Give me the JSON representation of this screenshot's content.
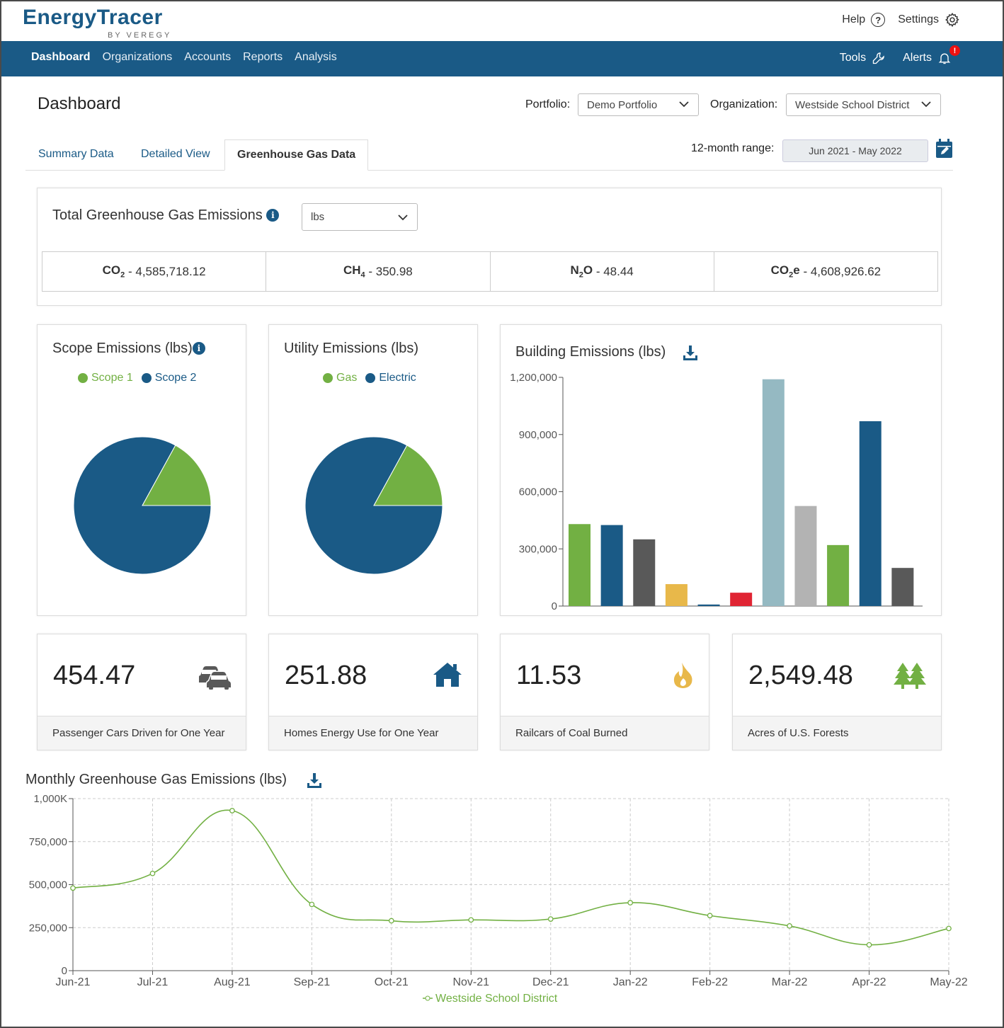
{
  "brand": {
    "name": "EnergyTracer",
    "sub": "BY VEREGY"
  },
  "header": {
    "help_label": "Help",
    "settings_label": "Settings"
  },
  "nav": {
    "items": [
      "Dashboard",
      "Organizations",
      "Accounts",
      "Reports",
      "Analysis"
    ],
    "tools_label": "Tools",
    "alerts_label": "Alerts",
    "alerts_badge": "!"
  },
  "page": {
    "title": "Dashboard",
    "portfolio_label": "Portfolio:",
    "portfolio_value": "Demo Portfolio",
    "organization_label": "Organization:",
    "organization_value": "Westside School District",
    "range_label": "12-month range:",
    "range_value": "Jun 2021 - May 2022"
  },
  "tabs": [
    "Summary Data",
    "Detailed View",
    "Greenhouse Gas Data"
  ],
  "totals": {
    "title": "Total Greenhouse Gas Emissions",
    "unit": "lbs",
    "co2": "4,585,718.12",
    "ch4": "350.98",
    "n2o": "48.44",
    "co2e": "4,608,926.62"
  },
  "scope_chart": {
    "title": "Scope Emissions (lbs)",
    "legend": [
      "Scope 1",
      "Scope 2"
    ],
    "values": [
      17,
      83
    ]
  },
  "utility_chart": {
    "title": "Utility Emissions (lbs)",
    "legend": [
      "Gas",
      "Electric"
    ],
    "values": [
      17,
      83
    ]
  },
  "building_title": "Building Emissions (lbs)",
  "stats": [
    {
      "value": "454.47",
      "label": "Passenger Cars Driven for One Year"
    },
    {
      "value": "251.88",
      "label": "Homes Energy Use for One Year"
    },
    {
      "value": "11.53",
      "label": "Railcars of Coal Burned"
    },
    {
      "value": "2,549.48",
      "label": "Acres of U.S. Forests"
    }
  ],
  "monthly_title": "Monthly Greenhouse Gas Emissions (lbs)",
  "colors": {
    "green": "#72b043",
    "blue": "#1a5a86",
    "dark_gray": "#595959",
    "yellow": "#e8b84a",
    "red": "#e02433",
    "light_teal": "#95b9c2",
    "light_gray": "#b3b3b3"
  },
  "chart_data": [
    {
      "type": "pie",
      "title": "Scope Emissions (lbs)",
      "categories": [
        "Scope 1",
        "Scope 2"
      ],
      "values": [
        17,
        83
      ]
    },
    {
      "type": "pie",
      "title": "Utility Emissions (lbs)",
      "categories": [
        "Gas",
        "Electric"
      ],
      "values": [
        17,
        83
      ]
    },
    {
      "type": "bar",
      "title": "Building Emissions (lbs)",
      "values": [
        430000,
        425000,
        350000,
        115000,
        8000,
        70000,
        1190000,
        525000,
        320000,
        970000,
        200000
      ],
      "bar_colors": [
        "#72b043",
        "#1a5a86",
        "#595959",
        "#e8b84a",
        "#1a5a86",
        "#e02433",
        "#95b9c2",
        "#b3b3b3",
        "#72b043",
        "#1a5a86",
        "#595959"
      ],
      "yticks": [
        0,
        300000,
        600000,
        900000,
        1200000
      ],
      "ytick_labels": [
        "0",
        "300,000",
        "600,000",
        "900,000",
        "1,200,000"
      ],
      "ylim": [
        0,
        1200000
      ]
    },
    {
      "type": "line",
      "title": "Monthly Greenhouse Gas Emissions (lbs)",
      "x": [
        "Jun-21",
        "Jul-21",
        "Aug-21",
        "Sep-21",
        "Oct-21",
        "Nov-21",
        "Dec-21",
        "Jan-22",
        "Feb-22",
        "Mar-22",
        "Apr-22",
        "May-22"
      ],
      "series": [
        {
          "name": "Westside School District",
          "values": [
            480000,
            565000,
            930000,
            385000,
            290000,
            295000,
            300000,
            395000,
            320000,
            260000,
            150000,
            245000
          ]
        }
      ],
      "yticks": [
        0,
        250000,
        500000,
        750000,
        1000000
      ],
      "ytick_labels": [
        "0",
        "250,000",
        "500,000",
        "750,000",
        "1,000K"
      ],
      "ylim": [
        0,
        1000000
      ]
    }
  ]
}
